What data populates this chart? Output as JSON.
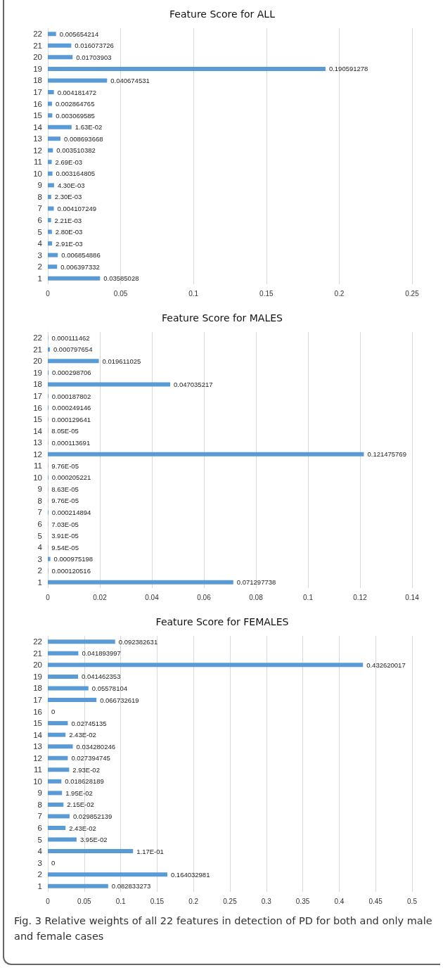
{
  "chart_data": [
    {
      "type": "bar",
      "orientation": "horizontal",
      "title": "Feature Score for ALL",
      "categories": [
        "22",
        "21",
        "20",
        "19",
        "18",
        "17",
        "16",
        "15",
        "14",
        "13",
        "12",
        "11",
        "10",
        "9",
        "8",
        "7",
        "6",
        "5",
        "4",
        "3",
        "2",
        "1"
      ],
      "values": [
        0.005654214,
        0.016073726,
        0.01703903,
        0.190591278,
        0.040674531,
        0.004181472,
        0.002864765,
        0.003069585,
        0.0163,
        0.008693668,
        0.003510382,
        0.00269,
        0.003164805,
        0.0043,
        0.0023,
        0.004107249,
        0.00221,
        0.0028,
        0.00291,
        0.006854886,
        0.006397332,
        0.03585028
      ],
      "value_labels": [
        "0.005654214",
        "0.016073726",
        "0.01703903",
        "0.190591278",
        "0.040674531",
        "0.004181472",
        "0.002864765",
        "0.003069585",
        "1.63E-02",
        "0.008693668",
        "0.003510382",
        "2.69E-03",
        "0.003164805",
        "4.30E-03",
        "2.30E-03",
        "0.004107249",
        "2.21E-03",
        "2.80E-03",
        "2.91E-03",
        "0.006854886",
        "0.006397332",
        "0.03585028"
      ],
      "color": "#5b9bd5",
      "xlim": [
        0,
        0.25
      ],
      "xticks": [
        0,
        0.05,
        0.1,
        0.15,
        0.2,
        0.25
      ],
      "grid": "x"
    },
    {
      "type": "bar",
      "orientation": "horizontal",
      "title": "Feature Score for MALES",
      "categories": [
        "22",
        "21",
        "20",
        "19",
        "18",
        "17",
        "16",
        "15",
        "14",
        "13",
        "12",
        "11",
        "10",
        "9",
        "8",
        "7",
        "6",
        "5",
        "4",
        "3",
        "2",
        "1"
      ],
      "values": [
        0.000111462,
        0.000797654,
        0.019611025,
        0.000298706,
        0.047035217,
        0.000187802,
        0.000249146,
        0.000129641,
        8.05e-05,
        0.000113691,
        0.121475769,
        9.76e-05,
        0.000205221,
        8.63e-05,
        9.76e-05,
        0.000214894,
        7.03e-05,
        3.91e-05,
        9.54e-05,
        0.000975198,
        0.000120516,
        0.071297738
      ],
      "value_labels": [
        "0.000111462",
        "0.000797654",
        "0.019611025",
        "0.000298706",
        "0.047035217",
        "0.000187802",
        "0.000249146",
        "0.000129641",
        "8.05E-05",
        "0.000113691",
        "0.121475769",
        "9.76E-05",
        "0.000205221",
        "8.63E-05",
        "9.76E-05",
        "0.000214894",
        "7.03E-05",
        "3.91E-05",
        "9.54E-05",
        "0.000975198",
        "0.000120516",
        "0.071297738"
      ],
      "color": "#5b9bd5",
      "xlim": [
        0,
        0.14
      ],
      "xticks": [
        0,
        0.02,
        0.04,
        0.06,
        0.08,
        0.1,
        0.12,
        0.14
      ],
      "grid": "x"
    },
    {
      "type": "bar",
      "orientation": "horizontal",
      "title": "Feature Score for FEMALES",
      "categories": [
        "22",
        "21",
        "20",
        "19",
        "18",
        "17",
        "16",
        "15",
        "14",
        "13",
        "12",
        "11",
        "10",
        "9",
        "8",
        "7",
        "6",
        "5",
        "4",
        "3",
        "2",
        "1"
      ],
      "values": [
        0.092382631,
        0.041893997,
        0.432620017,
        0.041462353,
        0.05578104,
        0.066732619,
        0,
        0.02745135,
        0.0243,
        0.034280246,
        0.027394745,
        0.0293,
        0.018628189,
        0.0195,
        0.0215,
        0.029852139,
        0.0243,
        0.0395,
        0.117,
        0,
        0.164032981,
        0.082833273
      ],
      "value_labels": [
        "0.092382631",
        "0.041893997",
        "0.432620017",
        "0.041462353",
        "0.05578104",
        "0.066732619",
        "0",
        "0.02745135",
        "2.43E-02",
        "0.034280246",
        "0.027394745",
        "2.93E-02",
        "0.018628189",
        "1.95E-02",
        "2.15E-02",
        "0.029852139",
        "2.43E-02",
        "3.95E-02",
        "1.17E-01",
        "0",
        "0.164032981",
        "0.082833273"
      ],
      "color": "#5b9bd5",
      "xlim": [
        0,
        0.5
      ],
      "xticks": [
        0,
        0.05,
        0.1,
        0.15,
        0.2,
        0.25,
        0.3,
        0.35,
        0.4,
        0.45,
        0.5
      ],
      "grid": "x",
      "annotations": [
        "Fig. 3  Relative weights of all 22 features in detection of PD for both and only male and female cases"
      ]
    }
  ]
}
